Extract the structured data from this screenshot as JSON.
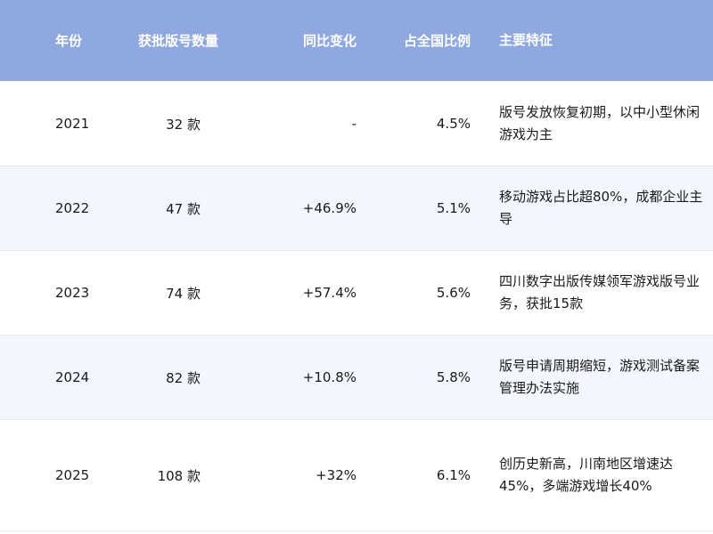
{
  "colors": {
    "header_bg": "#8fa9e0",
    "alt_row_bg": "#f3f6fc"
  },
  "table": {
    "headers": [
      "年份",
      "获批版号数量",
      "同比变化",
      "占全国比例",
      "主要特征"
    ],
    "rows": [
      [
        "2021",
        "32 款",
        "-",
        "4.5%",
        "版号发放恢复初期，以中小型休闲游戏为主"
      ],
      [
        "2022",
        "47 款",
        "+46.9%",
        "5.1%",
        "移动游戏占比超80%，成都企业主导"
      ],
      [
        "2023",
        "74 款",
        "+57.4%",
        "5.6%",
        "四川数字出版传媒领军游戏版号业务，获批15款"
      ],
      [
        "2024",
        "82 款",
        "+10.8%",
        "5.8%",
        "版号申请周期缩短，游戏测试备案管理办法实施"
      ],
      [
        "2025",
        "108 款",
        "+32%",
        "6.1%",
        "创历史新高，川南地区增速达45%，多端游戏增长40%"
      ]
    ]
  }
}
